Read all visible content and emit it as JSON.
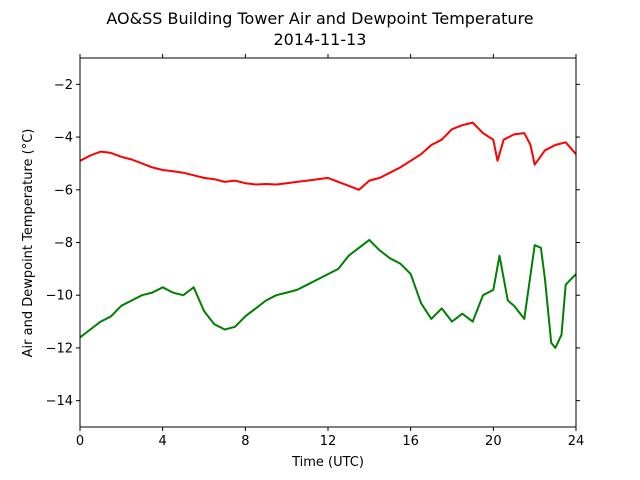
{
  "chart_data": {
    "type": "line",
    "title": "AO&SS Building Tower Air and Dewpoint Temperature",
    "subtitle": "2014-11-13",
    "xlabel": "Time (UTC)",
    "ylabel": "Air and Dewpoint Temperature (°C)",
    "xlim": [
      0,
      24
    ],
    "ylim": [
      -15,
      -1
    ],
    "xticks": [
      0,
      4,
      8,
      12,
      16,
      20,
      24
    ],
    "yticks": [
      -14,
      -12,
      -10,
      -8,
      -6,
      -4,
      -2
    ],
    "grid": false,
    "legend": "none",
    "series": [
      {
        "color": "#ff0000",
        "x": [
          0,
          0.5,
          1,
          1.5,
          2,
          2.5,
          3,
          3.5,
          4,
          4.5,
          5,
          5.5,
          6,
          6.5,
          7,
          7.5,
          8,
          8.5,
          9,
          9.5,
          10,
          10.5,
          11,
          11.5,
          12,
          12.5,
          13,
          13.5,
          14,
          14.5,
          15,
          15.5,
          16,
          16.5,
          17,
          17.5,
          18,
          18.5,
          19,
          19.5,
          20,
          20.2,
          20.5,
          21,
          21.5,
          21.8,
          22,
          22.5,
          23,
          23.5,
          24
        ],
        "values": [
          -4.9,
          -4.7,
          -4.55,
          -4.6,
          -4.75,
          -4.85,
          -5.0,
          -5.15,
          -5.25,
          -5.3,
          -5.35,
          -5.45,
          -5.55,
          -5.6,
          -5.7,
          -5.65,
          -5.75,
          -5.8,
          -5.78,
          -5.8,
          -5.75,
          -5.7,
          -5.65,
          -5.6,
          -5.55,
          -5.7,
          -5.85,
          -6.0,
          -5.65,
          -5.55,
          -5.35,
          -5.15,
          -4.9,
          -4.65,
          -4.3,
          -4.1,
          -3.7,
          -3.55,
          -3.45,
          -3.85,
          -4.1,
          -4.9,
          -4.1,
          -3.9,
          -3.85,
          -4.3,
          -5.05,
          -4.5,
          -4.3,
          -4.2,
          -4.65
        ]
      },
      {
        "color": "#008000",
        "x": [
          0,
          0.5,
          1,
          1.5,
          2,
          2.5,
          3,
          3.5,
          4,
          4.5,
          5,
          5.5,
          6,
          6.5,
          7,
          7.5,
          8,
          8.5,
          9,
          9.5,
          10,
          10.5,
          11,
          11.5,
          12,
          12.5,
          13,
          13.5,
          14,
          14.5,
          15,
          15.5,
          16,
          16.5,
          17,
          17.5,
          18,
          18.5,
          19,
          19.5,
          20,
          20.3,
          20.7,
          21,
          21.5,
          22,
          22.3,
          22.5,
          22.8,
          23,
          23.3,
          23.5,
          24
        ],
        "values": [
          -11.6,
          -11.3,
          -11.0,
          -10.8,
          -10.4,
          -10.2,
          -10.0,
          -9.9,
          -9.7,
          -9.9,
          -10.0,
          -9.7,
          -10.6,
          -11.1,
          -11.3,
          -11.2,
          -10.8,
          -10.5,
          -10.2,
          -10.0,
          -9.9,
          -9.8,
          -9.6,
          -9.4,
          -9.2,
          -9.0,
          -8.5,
          -8.2,
          -7.9,
          -8.3,
          -8.6,
          -8.8,
          -9.2,
          -10.3,
          -10.9,
          -10.5,
          -11.0,
          -10.7,
          -11.0,
          -10.0,
          -9.8,
          -8.5,
          -10.2,
          -10.4,
          -10.9,
          -8.1,
          -8.2,
          -9.4,
          -11.8,
          -12.0,
          -11.5,
          -9.6,
          -9.2
        ]
      }
    ]
  }
}
